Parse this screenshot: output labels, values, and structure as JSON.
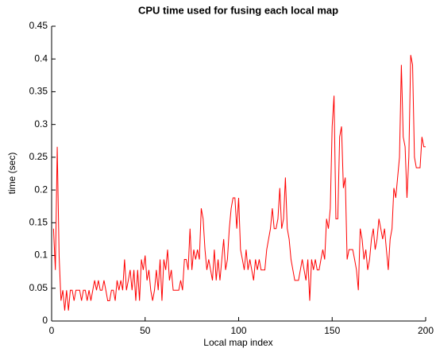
{
  "chart_data": {
    "type": "line",
    "title": "CPU time used for fusing each local map",
    "x_label": "Local map index",
    "y_label": "time (sec)",
    "xlim": [
      0,
      200
    ],
    "ylim": [
      0,
      0.45
    ],
    "xticks": [
      0,
      50,
      100,
      150,
      200
    ],
    "yticks": [
      0,
      0.05,
      0.1,
      0.15,
      0.2,
      0.25,
      0.3,
      0.35,
      0.4,
      0.45
    ],
    "grid": false,
    "x": [
      1,
      2,
      3,
      4,
      5,
      6,
      7,
      8,
      9,
      10,
      11,
      12,
      13,
      14,
      15,
      16,
      17,
      18,
      19,
      20,
      21,
      22,
      23,
      24,
      25,
      26,
      27,
      28,
      29,
      30,
      31,
      32,
      33,
      34,
      35,
      36,
      37,
      38,
      39,
      40,
      41,
      42,
      43,
      44,
      45,
      46,
      47,
      48,
      49,
      50,
      51,
      52,
      53,
      54,
      55,
      56,
      57,
      58,
      59,
      60,
      61,
      62,
      63,
      64,
      65,
      66,
      67,
      68,
      69,
      70,
      71,
      72,
      73,
      74,
      75,
      76,
      77,
      78,
      79,
      80,
      81,
      82,
      83,
      84,
      85,
      86,
      87,
      88,
      89,
      90,
      91,
      92,
      93,
      94,
      95,
      96,
      97,
      98,
      99,
      100,
      101,
      102,
      103,
      104,
      105,
      106,
      107,
      108,
      109,
      110,
      111,
      112,
      113,
      114,
      115,
      116,
      117,
      118,
      119,
      120,
      121,
      122,
      123,
      124,
      125,
      126,
      127,
      128,
      129,
      130,
      131,
      132,
      133,
      134,
      135,
      136,
      137,
      138,
      139,
      140,
      141,
      142,
      143,
      144,
      145,
      146,
      147,
      148,
      149,
      150,
      151,
      152,
      153,
      154,
      155,
      156,
      157,
      158,
      159,
      160,
      161,
      162,
      163,
      164,
      165,
      166,
      167,
      168,
      169,
      170,
      171,
      172,
      173,
      174,
      175,
      176,
      177,
      178,
      179,
      180,
      181,
      182,
      183,
      184,
      185,
      186,
      187,
      188,
      189,
      190,
      191,
      192,
      193,
      194,
      195,
      196,
      197,
      198,
      199,
      200
    ],
    "series": [
      {
        "name": "CPU time",
        "color": "#ff0000",
        "values": [
          0.141,
          0.078,
          0.266,
          0.1,
          0.031,
          0.047,
          0.016,
          0.047,
          0.016,
          0.047,
          0.047,
          0.031,
          0.047,
          0.047,
          0.047,
          0.031,
          0.047,
          0.047,
          0.031,
          0.047,
          0.031,
          0.047,
          0.062,
          0.047,
          0.062,
          0.047,
          0.047,
          0.062,
          0.047,
          0.031,
          0.031,
          0.047,
          0.047,
          0.031,
          0.062,
          0.047,
          0.062,
          0.047,
          0.094,
          0.047,
          0.062,
          0.078,
          0.047,
          0.078,
          0.031,
          0.078,
          0.031,
          0.094,
          0.078,
          0.1,
          0.062,
          0.078,
          0.047,
          0.031,
          0.047,
          0.078,
          0.047,
          0.094,
          0.031,
          0.094,
          0.078,
          0.109,
          0.062,
          0.078,
          0.047,
          0.047,
          0.047,
          0.047,
          0.062,
          0.047,
          0.094,
          0.094,
          0.078,
          0.141,
          0.078,
          0.109,
          0.094,
          0.109,
          0.094,
          0.172,
          0.156,
          0.109,
          0.078,
          0.094,
          0.078,
          0.062,
          0.109,
          0.062,
          0.094,
          0.062,
          0.094,
          0.125,
          0.078,
          0.094,
          0.141,
          0.172,
          0.188,
          0.188,
          0.141,
          0.188,
          0.109,
          0.094,
          0.078,
          0.109,
          0.078,
          0.094,
          0.078,
          0.062,
          0.094,
          0.078,
          0.094,
          0.078,
          0.078,
          0.078,
          0.109,
          0.125,
          0.141,
          0.172,
          0.141,
          0.141,
          0.156,
          0.203,
          0.141,
          0.156,
          0.219,
          0.141,
          0.125,
          0.094,
          0.078,
          0.062,
          0.062,
          0.062,
          0.078,
          0.094,
          0.078,
          0.062,
          0.094,
          0.031,
          0.094,
          0.078,
          0.094,
          0.078,
          0.078,
          0.094,
          0.109,
          0.094,
          0.156,
          0.141,
          0.172,
          0.297,
          0.344,
          0.156,
          0.156,
          0.281,
          0.297,
          0.203,
          0.219,
          0.094,
          0.109,
          0.109,
          0.109,
          0.094,
          0.078,
          0.047,
          0.141,
          0.125,
          0.094,
          0.109,
          0.078,
          0.094,
          0.125,
          0.141,
          0.109,
          0.125,
          0.156,
          0.141,
          0.125,
          0.141,
          0.109,
          0.078,
          0.125,
          0.141,
          0.203,
          0.188,
          0.219,
          0.25,
          0.391,
          0.281,
          0.266,
          0.188,
          0.25,
          0.406,
          0.391,
          0.25,
          0.234,
          0.234,
          0.234,
          0.281,
          0.266,
          0.266
        ]
      }
    ]
  }
}
